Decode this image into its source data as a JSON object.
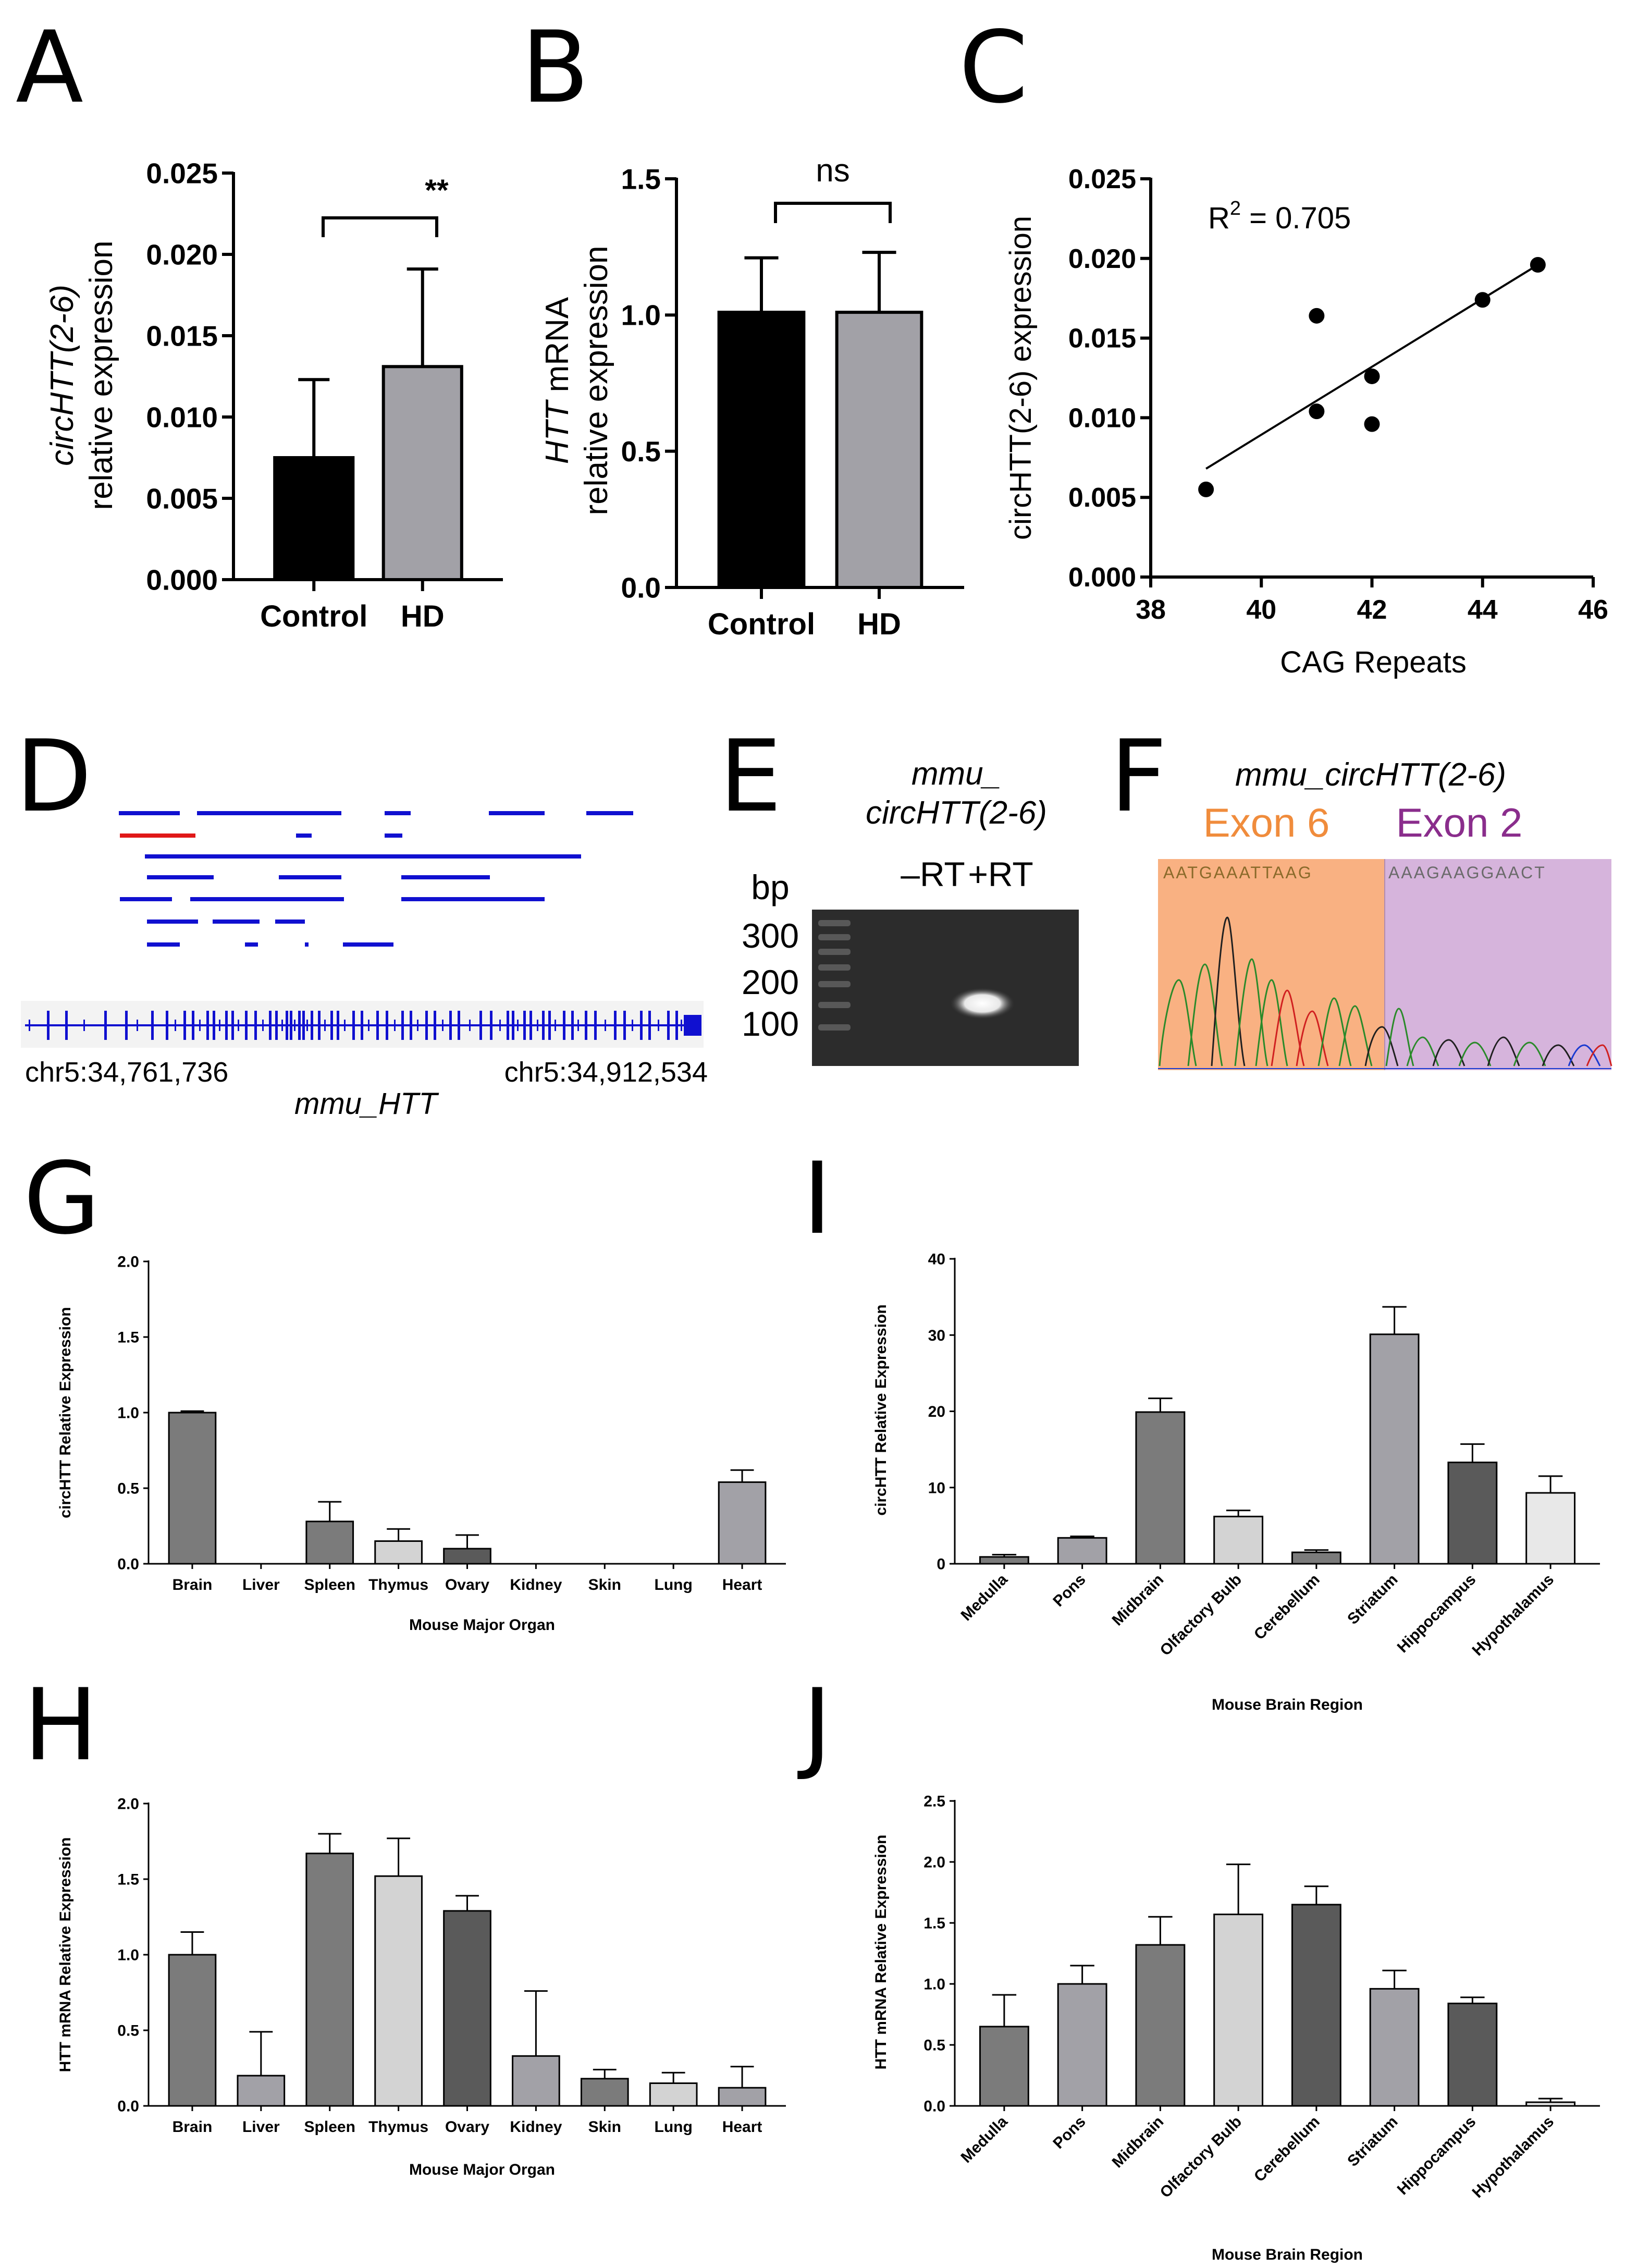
{
  "panels": {
    "A": "A",
    "B": "B",
    "C": "C",
    "D": "D",
    "E": "E",
    "F": "F",
    "G": "G",
    "H": "H",
    "I": "I",
    "J": "J"
  },
  "panel_A": {
    "ylabel_italic": "circHTT(2-6)",
    "ylabel": "relative expression",
    "significance": "**"
  },
  "panel_B": {
    "ylabel_italic": "HTT",
    "ylabel_rest": " mRNA",
    "ylabel": "relative expression",
    "significance": "ns"
  },
  "panel_C": {
    "r2_prefix": "R",
    "r2_sup": "2",
    "r2_value": " = 0.705"
  },
  "panel_D": {
    "left_coord": "chr5:34,761,736",
    "right_coord": "chr5:34,912,534",
    "gene": "mmu_HTT"
  },
  "panel_E": {
    "title_line1": "mmu_",
    "title_line2": "circHTT(2-6)",
    "unit": "bp",
    "ladder": [
      "300",
      "200",
      "100"
    ],
    "lanes": [
      "–RT",
      "+RT"
    ]
  },
  "panel_F": {
    "title": "mmu_circHTT(2-6)",
    "exon_left": "Exon 6",
    "exon_right": "Exon 2",
    "seq_left": "AATGAAATTAAG",
    "seq_right": "AAAGAAGGAACT",
    "exon_left_color": "#f08c3c",
    "exon_right_color": "#8a2d8c"
  },
  "chart_data": [
    {
      "panel": "A",
      "type": "bar",
      "categories": [
        "Control",
        "HD"
      ],
      "values": [
        0.0075,
        0.0131
      ],
      "errors": [
        0.0048,
        0.006
      ],
      "colors": [
        "#000000",
        "#a2a1a7"
      ],
      "ylim": [
        0,
        0.025
      ],
      "yticks": [
        "0.000",
        "0.005",
        "0.010",
        "0.015",
        "0.020",
        "0.025"
      ],
      "ylabel": "circHTT(2-6) relative expression"
    },
    {
      "panel": "B",
      "type": "bar",
      "categories": [
        "Control",
        "HD"
      ],
      "values": [
        1.01,
        1.01
      ],
      "errors": [
        0.2,
        0.22
      ],
      "colors": [
        "#000000",
        "#a2a1a7"
      ],
      "ylim": [
        0,
        1.5
      ],
      "yticks": [
        "0.0",
        "0.5",
        "1.0",
        "1.5"
      ],
      "ylabel": "HTT mRNA relative expression"
    },
    {
      "panel": "C",
      "type": "scatter",
      "points": [
        [
          39,
          0.0055
        ],
        [
          41,
          0.0104
        ],
        [
          41,
          0.0164
        ],
        [
          42,
          0.0126
        ],
        [
          42,
          0.0096
        ],
        [
          44,
          0.0174
        ],
        [
          45,
          0.0196
        ]
      ],
      "fit_line": [
        [
          39,
          0.0068
        ],
        [
          45,
          0.0196
        ]
      ],
      "xlim": [
        38,
        46
      ],
      "ylim": [
        0,
        0.025
      ],
      "xticks": [
        "38",
        "40",
        "42",
        "44",
        "46"
      ],
      "yticks": [
        "0.000",
        "0.005",
        "0.010",
        "0.015",
        "0.020",
        "0.025"
      ],
      "xlabel": "CAG Repeats",
      "ylabel": "circHTT(2-6) expression"
    },
    {
      "panel": "G",
      "type": "bar",
      "categories": [
        "Brain",
        "Liver",
        "Spleen",
        "Thymus",
        "Ovary",
        "Kidney",
        "Skin",
        "Lung",
        "Heart"
      ],
      "values": [
        1.0,
        0,
        0.28,
        0.15,
        0.1,
        0,
        0,
        0,
        0.54
      ],
      "errors": [
        0.01,
        0,
        0.13,
        0.08,
        0.09,
        0,
        0,
        0,
        0.08
      ],
      "colors": [
        "#7b7b7b",
        "#a2a1a7",
        "#7b7b7b",
        "#d3d3d3",
        "#5a5a5a",
        "#a2a1a7",
        "#7b7b7b",
        "#d3d3d3",
        "#a2a1a7"
      ],
      "ylim": [
        0,
        2.0
      ],
      "yticks": [
        "0.0",
        "0.5",
        "1.0",
        "1.5",
        "2.0"
      ],
      "xlabel": "Mouse Major Organ",
      "ylabel": "circHTT Relative Expression"
    },
    {
      "panel": "H",
      "type": "bar",
      "categories": [
        "Brain",
        "Liver",
        "Spleen",
        "Thymus",
        "Ovary",
        "Kidney",
        "Skin",
        "Lung",
        "Heart"
      ],
      "values": [
        1.0,
        0.2,
        1.67,
        1.52,
        1.29,
        0.33,
        0.18,
        0.15,
        0.12
      ],
      "errors": [
        0.15,
        0.29,
        0.13,
        0.25,
        0.1,
        0.43,
        0.06,
        0.07,
        0.14
      ],
      "colors": [
        "#7b7b7b",
        "#a2a1a7",
        "#7b7b7b",
        "#d3d3d3",
        "#5a5a5a",
        "#a2a1a7",
        "#7b7b7b",
        "#d3d3d3",
        "#a2a1a7"
      ],
      "ylim": [
        0,
        2.0
      ],
      "yticks": [
        "0.0",
        "0.5",
        "1.0",
        "1.5",
        "2.0"
      ],
      "xlabel": "Mouse Major Organ",
      "ylabel": "HTT mRNA Relative Expression"
    },
    {
      "panel": "I",
      "type": "bar",
      "categories": [
        "Medulla",
        "Pons",
        "Midbrain",
        "Olfactory Bulb",
        "Cerebellum",
        "Striatum",
        "Hippocampus",
        "Hypothalamus"
      ],
      "values": [
        0.9,
        3.4,
        19.9,
        6.2,
        1.5,
        30.1,
        13.3,
        9.3
      ],
      "errors": [
        0.3,
        0.2,
        1.8,
        0.8,
        0.3,
        3.6,
        2.4,
        2.2
      ],
      "colors": [
        "#7b7b7b",
        "#a2a1a7",
        "#7b7b7b",
        "#d3d3d3",
        "#7b7b7b",
        "#a2a1a7",
        "#5a5a5a",
        "#e8e8e8"
      ],
      "ylim": [
        0,
        40
      ],
      "yticks": [
        "0",
        "10",
        "20",
        "30",
        "40"
      ],
      "xlabel": "Mouse Brain  Region",
      "ylabel": "circHTT Relative Expression"
    },
    {
      "panel": "J",
      "type": "bar",
      "categories": [
        "Medulla",
        "Pons",
        "Midbrain",
        "Olfactory Bulb",
        "Cerebellum",
        "Striatum",
        "Hippocampus",
        "Hypothalamus"
      ],
      "values": [
        0.65,
        1.0,
        1.32,
        1.57,
        1.65,
        0.96,
        0.84,
        0.03
      ],
      "errors": [
        0.26,
        0.15,
        0.23,
        0.41,
        0.15,
        0.15,
        0.05,
        0.03
      ],
      "colors": [
        "#7b7b7b",
        "#a2a1a7",
        "#7b7b7b",
        "#d3d3d3",
        "#5a5a5a",
        "#a2a1a7",
        "#5a5a5a",
        "#e8e8e8"
      ],
      "ylim": [
        0,
        2.5
      ],
      "yticks": [
        "0.0",
        "0.5",
        "1.0",
        "1.5",
        "2.0",
        "2.5"
      ],
      "xlabel": "Mouse Brain  Region",
      "ylabel": "HTT mRNA Relative Expression"
    }
  ]
}
